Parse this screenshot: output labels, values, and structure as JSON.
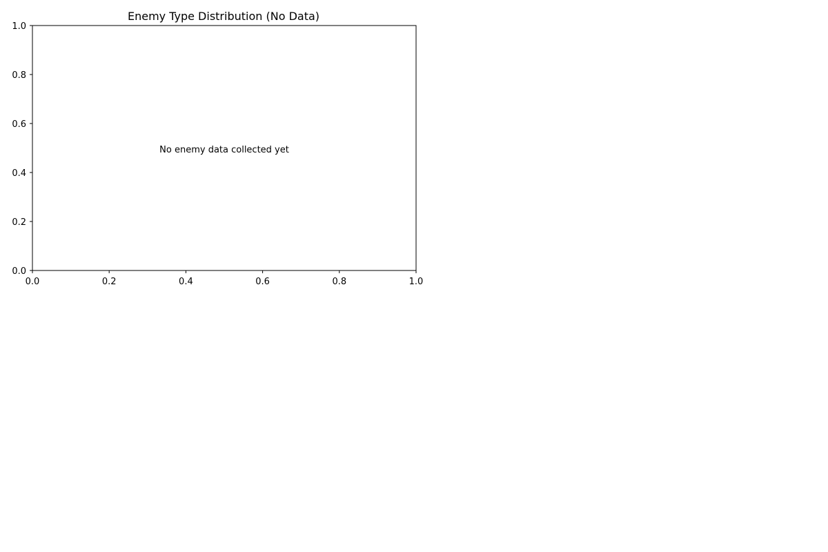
{
  "chart_data": {
    "type": "bar",
    "title": "Enemy Type Distribution (No Data)",
    "xlabel": "",
    "ylabel": "",
    "xlim": [
      0.0,
      1.0
    ],
    "ylim": [
      0.0,
      1.0
    ],
    "xticks": [
      "0.0",
      "0.2",
      "0.4",
      "0.6",
      "0.8",
      "1.0"
    ],
    "yticks": [
      "0.0",
      "0.2",
      "0.4",
      "0.6",
      "0.8",
      "1.0"
    ],
    "categories": [],
    "values": [],
    "grid": false,
    "legend": "none",
    "annotation": {
      "text": "No enemy data collected yet",
      "x": 0.5,
      "y": 0.5
    }
  }
}
